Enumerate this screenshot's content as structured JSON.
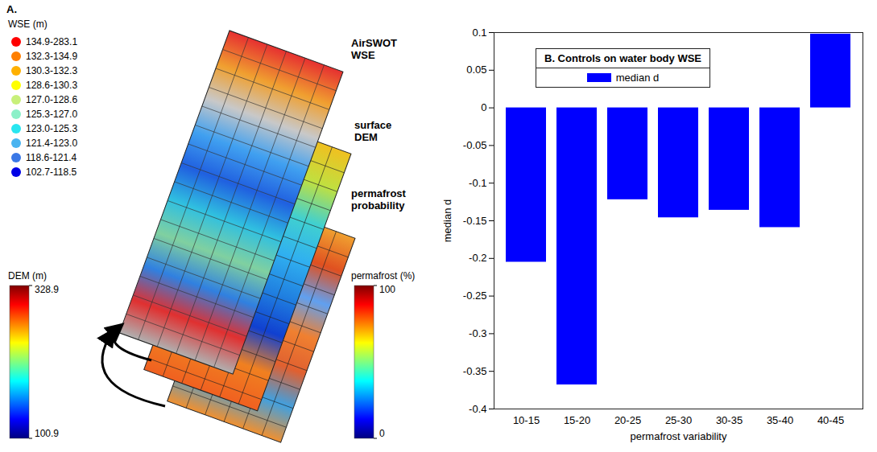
{
  "panel_a": {
    "label": "A.",
    "layers": [
      "AirSWOT WSE",
      "surface DEM",
      "permafrost probability"
    ],
    "wse_legend": {
      "title": "WSE (m)",
      "labels": [
        "134.9-283.1",
        "132.3-134.9",
        "130.3-132.3",
        "128.6-130.3",
        "127.0-128.6",
        "125.3-127.0",
        "123.0-125.3",
        "121.4-123.0",
        "118.6-121.4",
        "102.7-118.5"
      ],
      "colors": [
        "#ff0000",
        "#ff7f00",
        "#ffb000",
        "#ffff00",
        "#c8f07a",
        "#8cf0c8",
        "#28e6f0",
        "#4ab4f0",
        "#3a78e6",
        "#0000e6"
      ]
    },
    "dem_colorbar": {
      "title": "DEM (m)",
      "range": [
        100.9,
        328.9
      ],
      "ticks": [
        {
          "value": 328.9,
          "label": "328.9"
        },
        {
          "value": 100.9,
          "label": "100.9"
        }
      ]
    },
    "permafrost_colorbar": {
      "title": "permafrost (%)",
      "range": [
        0,
        100
      ],
      "ticks": [
        100,
        0
      ]
    }
  },
  "chart_data": {
    "type": "bar",
    "title": "B. Controls on water body WSE",
    "categories": [
      "10-15",
      "15-20",
      "20-25",
      "25-30",
      "30-35",
      "35-40",
      "40-45"
    ],
    "series": [
      {
        "name": "median d",
        "color": "#0000ff",
        "values": [
          -0.205,
          -0.368,
          -0.122,
          -0.146,
          -0.136,
          -0.159,
          0.098
        ]
      }
    ],
    "x_label": "permafrost variability",
    "y_label": "median d",
    "ylim": [
      -0.4,
      0.1
    ],
    "yticks": [
      -0.4,
      -0.35,
      -0.3,
      -0.25,
      -0.2,
      -0.15,
      -0.1,
      -0.05,
      0,
      0.05,
      0.1
    ],
    "grid": false,
    "legend": "top-left"
  }
}
